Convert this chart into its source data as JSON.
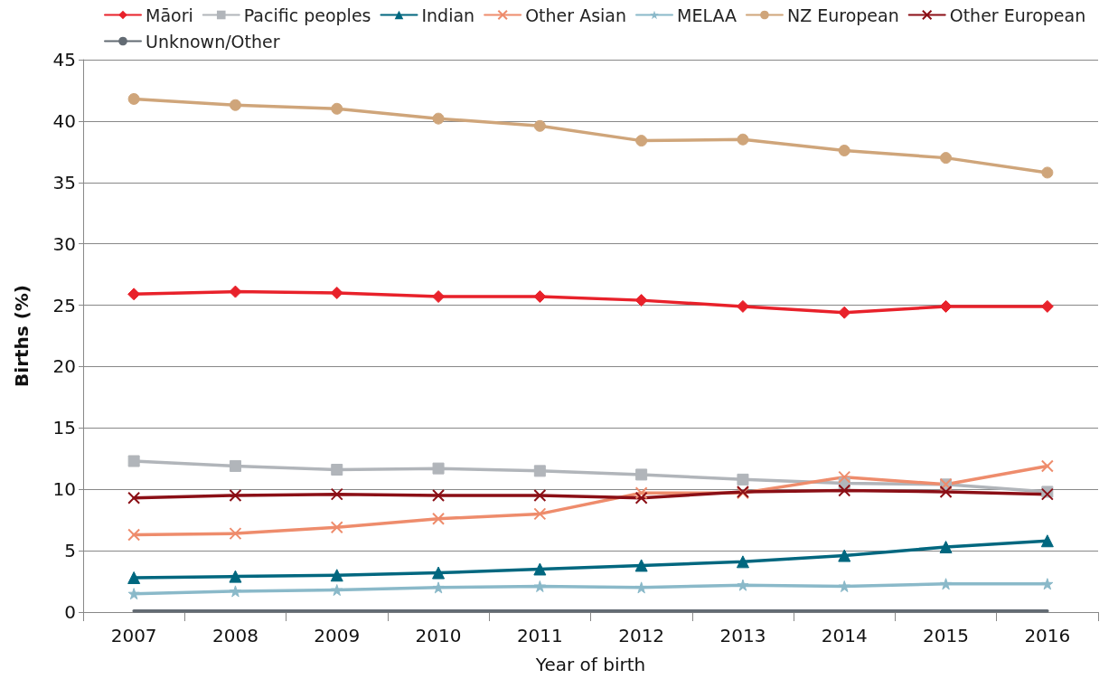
{
  "chart_data": {
    "type": "line",
    "xlabel": "Year of birth",
    "ylabel": "Births (%)",
    "categories": [
      "2007",
      "2008",
      "2009",
      "2010",
      "2011",
      "2012",
      "2013",
      "2014",
      "2015",
      "2016"
    ],
    "ylim": [
      0,
      45
    ],
    "yticks": [
      0,
      5,
      10,
      15,
      20,
      25,
      30,
      35,
      40,
      45
    ],
    "grid": "y",
    "legend": "top",
    "series": [
      {
        "name": "Māori",
        "color": "#e8212a",
        "marker": "diamond",
        "values": [
          25.9,
          26.1,
          26.0,
          25.7,
          25.7,
          25.4,
          24.9,
          24.4,
          24.9,
          24.9
        ]
      },
      {
        "name": "Pacific peoples",
        "color": "#b1b5ba",
        "marker": "square",
        "values": [
          12.3,
          11.9,
          11.6,
          11.7,
          11.5,
          11.2,
          10.8,
          10.5,
          10.4,
          9.8
        ]
      },
      {
        "name": "Indian",
        "color": "#00677f",
        "marker": "triangle",
        "values": [
          2.8,
          2.9,
          3.0,
          3.2,
          3.5,
          3.8,
          4.1,
          4.6,
          5.3,
          5.8
        ]
      },
      {
        "name": "Other Asian",
        "color": "#ee8c6c",
        "marker": "cross",
        "values": [
          6.3,
          6.4,
          6.9,
          7.6,
          8.0,
          9.7,
          9.7,
          11.0,
          10.4,
          11.9
        ]
      },
      {
        "name": "MELAA",
        "color": "#8ab9c9",
        "marker": "star",
        "values": [
          1.5,
          1.7,
          1.8,
          2.0,
          2.1,
          2.0,
          2.2,
          2.1,
          2.3,
          2.3
        ]
      },
      {
        "name": "NZ European",
        "color": "#cfa57a",
        "marker": "circle",
        "values": [
          41.8,
          41.3,
          41.0,
          40.2,
          39.6,
          38.4,
          38.5,
          37.6,
          37.0,
          35.8
        ]
      },
      {
        "name": "Other European",
        "color": "#8b0f16",
        "marker": "cross",
        "values": [
          9.3,
          9.5,
          9.6,
          9.5,
          9.5,
          9.3,
          9.8,
          9.9,
          9.8,
          9.6
        ]
      },
      {
        "name": "Unknown/Other",
        "color": "#636b73",
        "marker": "none",
        "values": [
          0.1,
          0.1,
          0.1,
          0.1,
          0.1,
          0.1,
          0.1,
          0.1,
          0.1,
          0.1
        ]
      }
    ]
  }
}
